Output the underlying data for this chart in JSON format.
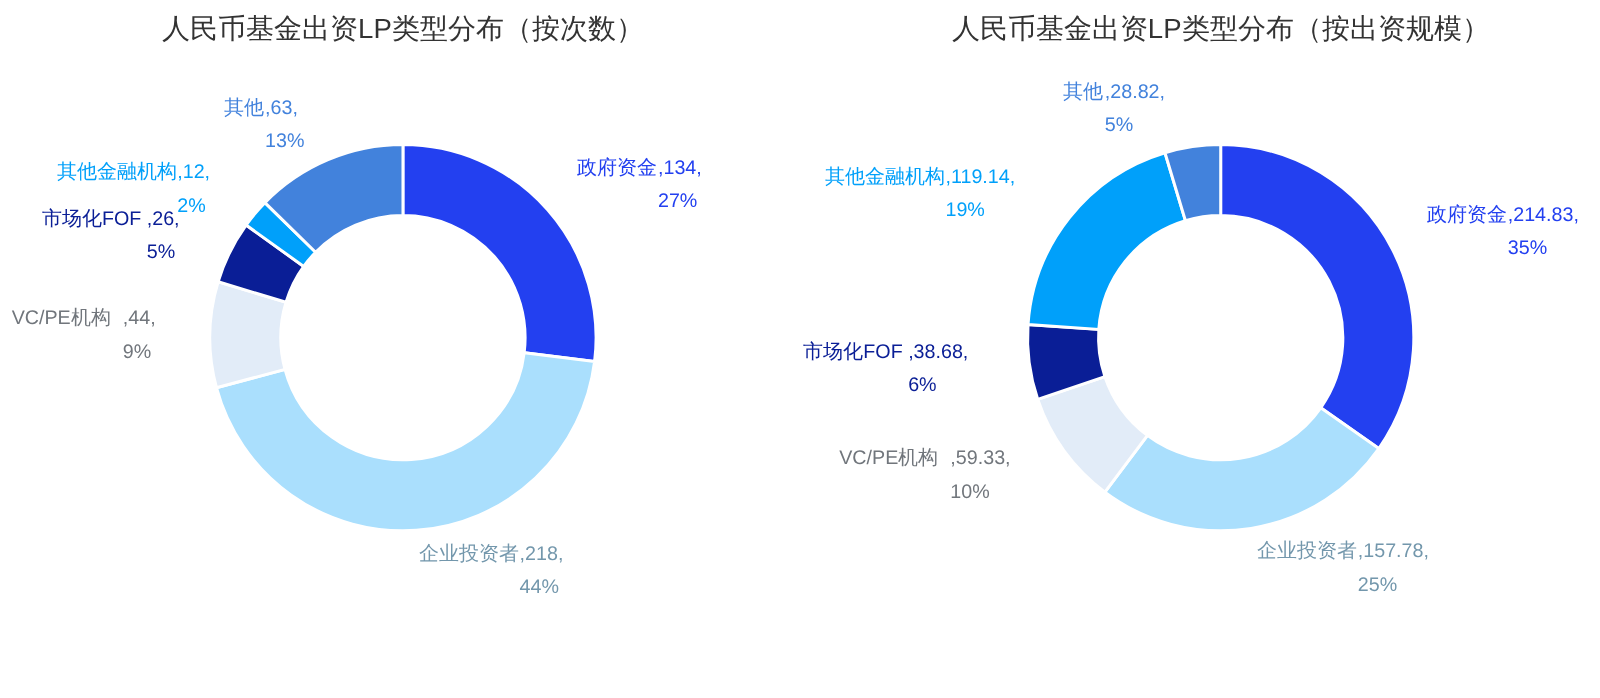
{
  "chart_data": [
    {
      "type": "donut",
      "title": "人民币基金出资LP类型分布（按次数）",
      "categories": [
        "政府资金",
        "企业投资者",
        "VC/PE机构",
        "市场化FOF",
        "其他金融机构",
        "其他"
      ],
      "values": [
        134,
        218,
        44,
        26,
        12,
        63
      ],
      "colors": [
        "#2340f0",
        "#aadffd",
        "#e2ecf8",
        "#0a1e96",
        "#00a0fa",
        "#4282dc"
      ],
      "value_labels": [
        ",134,\n27%",
        ",218,\n44%",
        ",44,\n9%",
        ",26,\n5%",
        ",12,\n2%",
        ",63,\n13%"
      ]
    },
    {
      "type": "donut",
      "title": "人民币基金出资LP类型分布（按出资规模）",
      "categories": [
        "政府资金",
        "企业投资者",
        "VC/PE机构",
        "市场化FOF",
        "其他金融机构",
        "其他"
      ],
      "values": [
        214.83,
        157.78,
        59.33,
        38.68,
        119.14,
        28.82
      ],
      "colors": [
        "#2340f0",
        "#aadffd",
        "#e2ecf8",
        "#0a1e96",
        "#00a0fa",
        "#4282dc"
      ],
      "value_labels": [
        ",214.83,\n35%",
        ",157.78,\n25%",
        ",59.33,\n10%",
        ",38.68,\n6%",
        ",119.14,\n19%",
        ",28.82,\n5%"
      ]
    }
  ]
}
